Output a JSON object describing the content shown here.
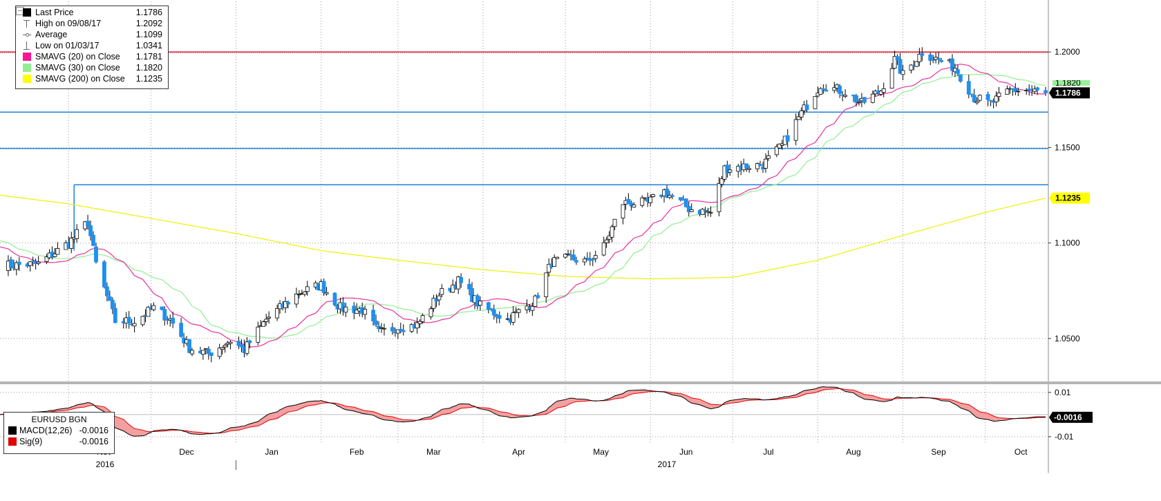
{
  "chart_data": [
    {
      "type": "candlestick",
      "series_name": "EURUSD BGN",
      "xlabels": [
        {
          "label": "Nov",
          "date": "2016-11-01"
        },
        {
          "label": "Dec",
          "date": "2016-12-01"
        },
        {
          "label": "Jan",
          "date": "2017-01-01"
        },
        {
          "label": "Feb",
          "date": "2017-02-01"
        },
        {
          "label": "Mar",
          "date": "2017-03-01"
        },
        {
          "label": "Apr",
          "date": "2017-04-01"
        },
        {
          "label": "May",
          "date": "2017-05-01"
        },
        {
          "label": "Jun",
          "date": "2017-06-01"
        },
        {
          "label": "Jul",
          "date": "2017-07-01"
        },
        {
          "label": "Aug",
          "date": "2017-08-01"
        },
        {
          "label": "Sep",
          "date": "2017-09-01"
        },
        {
          "label": "Oct",
          "date": "2017-10-01"
        }
      ],
      "year_labels": [
        {
          "label": "2016",
          "date": "2016-11-15"
        },
        {
          "label": "2017",
          "date": "2017-06-01"
        }
      ],
      "y_ticks": [
        1.05,
        1.1,
        1.15,
        1.2
      ],
      "y_tick_labels": [
        "1.0500",
        "1.1000",
        "1.1500",
        "1.2000"
      ],
      "ylim": [
        1.0275,
        1.2265
      ],
      "xlim": [
        "2016-10-07",
        "2017-10-24"
      ],
      "grid": "dotted",
      "horizontal_lines": [
        {
          "value": 1.2,
          "color": "#e0162b",
          "style": "dotted"
        },
        {
          "value": 1.1685,
          "color": "#1e7fd8"
        },
        {
          "value": 1.1495,
          "color": "#1e7fd8"
        },
        {
          "value": 1.1305,
          "color": "#1e7fd8",
          "start": "2016-11-03"
        }
      ],
      "price_keypoints": [
        [
          "2016-10-07",
          1.088
        ],
        [
          "2016-10-21",
          1.089
        ],
        [
          "2016-11-01",
          1.1
        ],
        [
          "2016-11-08",
          1.111
        ],
        [
          "2016-11-11",
          1.089
        ],
        [
          "2016-11-18",
          1.059
        ],
        [
          "2016-11-25",
          1.059
        ],
        [
          "2016-12-02",
          1.066
        ],
        [
          "2016-12-08",
          1.06
        ],
        [
          "2016-12-15",
          1.045
        ],
        [
          "2016-12-22",
          1.042
        ],
        [
          "2016-12-30",
          1.049
        ],
        [
          "2017-01-04",
          1.044
        ],
        [
          "2017-01-12",
          1.06
        ],
        [
          "2017-01-24",
          1.074
        ],
        [
          "2017-02-01",
          1.078
        ],
        [
          "2017-02-08",
          1.066
        ],
        [
          "2017-02-16",
          1.065
        ],
        [
          "2017-02-22",
          1.053
        ],
        [
          "2017-03-01",
          1.056
        ],
        [
          "2017-03-08",
          1.057
        ],
        [
          "2017-03-16",
          1.073
        ],
        [
          "2017-03-23",
          1.08
        ],
        [
          "2017-03-31",
          1.067
        ],
        [
          "2017-04-10",
          1.06
        ],
        [
          "2017-04-20",
          1.07
        ],
        [
          "2017-04-26",
          1.09
        ],
        [
          "2017-05-03",
          1.092
        ],
        [
          "2017-05-09",
          1.09
        ],
        [
          "2017-05-15",
          1.098
        ],
        [
          "2017-05-22",
          1.121
        ],
        [
          "2017-05-31",
          1.121
        ],
        [
          "2017-06-06",
          1.127
        ],
        [
          "2017-06-15",
          1.118
        ],
        [
          "2017-06-23",
          1.116
        ],
        [
          "2017-06-28",
          1.139
        ],
        [
          "2017-07-03",
          1.14
        ],
        [
          "2017-07-12",
          1.141
        ],
        [
          "2017-07-19",
          1.151
        ],
        [
          "2017-07-26",
          1.168
        ],
        [
          "2017-08-02",
          1.183
        ],
        [
          "2017-08-11",
          1.179
        ],
        [
          "2017-08-17",
          1.173
        ],
        [
          "2017-08-24",
          1.18
        ],
        [
          "2017-08-29",
          1.196
        ],
        [
          "2017-09-01",
          1.188
        ],
        [
          "2017-09-08",
          1.2
        ],
        [
          "2017-09-15",
          1.195
        ],
        [
          "2017-09-20",
          1.192
        ],
        [
          "2017-09-27",
          1.176
        ],
        [
          "2017-10-03",
          1.173
        ],
        [
          "2017-10-10",
          1.18
        ],
        [
          "2017-10-16",
          1.18
        ],
        [
          "2017-10-23",
          1.1786
        ]
      ],
      "sma200_keypoints": [
        [
          "2016-10-07",
          1.125
        ],
        [
          "2016-11-01",
          1.1205
        ],
        [
          "2017-01-01",
          1.105
        ],
        [
          "2017-02-01",
          1.096
        ],
        [
          "2017-03-01",
          1.091
        ],
        [
          "2017-04-01",
          1.086
        ],
        [
          "2017-05-01",
          1.0825
        ],
        [
          "2017-06-01",
          1.0812
        ],
        [
          "2017-07-01",
          1.082
        ],
        [
          "2017-08-01",
          1.091
        ],
        [
          "2017-09-01",
          1.104
        ],
        [
          "2017-10-01",
          1.116
        ],
        [
          "2017-10-23",
          1.1235
        ]
      ],
      "right_labels": [
        {
          "text": "1.1820",
          "value": 1.182,
          "bg": "#99f099",
          "partial": true
        },
        {
          "text": "1.1786",
          "value": 1.1786,
          "bg": "#000000",
          "fg": "#ffffff"
        },
        {
          "text": "1.1235",
          "value": 1.1235,
          "bg": "#ffff00",
          "fg": "#000000"
        }
      ],
      "colors": {
        "up": "#ffffff",
        "down": "#1e90f0",
        "sma20": "#e8309a",
        "sma30": "#90ee90",
        "sma200": "#f0f000"
      }
    },
    {
      "type": "line",
      "title": "EURUSD BGN",
      "series": [
        {
          "name": "MACD(12,26)",
          "color": "#000000"
        },
        {
          "name": "Sig(9)",
          "color": "#e00000"
        }
      ],
      "ylim": [
        -0.0125,
        0.014
      ],
      "y_ticks": [
        0.01,
        -0.01
      ],
      "y_tick_labels": [
        "0.01",
        "-0.01"
      ],
      "zero_line": 0,
      "last_value_label": "-0.0016",
      "fill_color": "#f4a0a0"
    }
  ],
  "legend": {
    "main": [
      {
        "symbol": "square",
        "color": "#000000",
        "label": "Last Price",
        "value": "1.1786"
      },
      {
        "symbol": "t-high",
        "label": "High on 09/08/17",
        "value": "1.2092"
      },
      {
        "symbol": "t-avg",
        "label": "Average",
        "value": "1.1099"
      },
      {
        "symbol": "t-low",
        "label": "Low on 01/03/17",
        "value": "1.0341"
      },
      {
        "symbol": "square",
        "color": "#ff1493",
        "label": "SMAVG (20)  on Close",
        "value": "1.1781"
      },
      {
        "symbol": "square",
        "color": "#90ee90",
        "label": "SMAVG (30)  on Close",
        "value": "1.1820"
      },
      {
        "symbol": "square",
        "color": "#ffff00",
        "label": "SMAVG (200)  on Close",
        "value": "1.1235"
      }
    ],
    "macd_title": "EURUSD BGN",
    "macd": [
      {
        "color": "#000000",
        "label": "MACD(12,26)",
        "value": "-0.0016"
      },
      {
        "color": "#e00000",
        "label": "Sig(9)",
        "value": "-0.0016"
      }
    ]
  }
}
